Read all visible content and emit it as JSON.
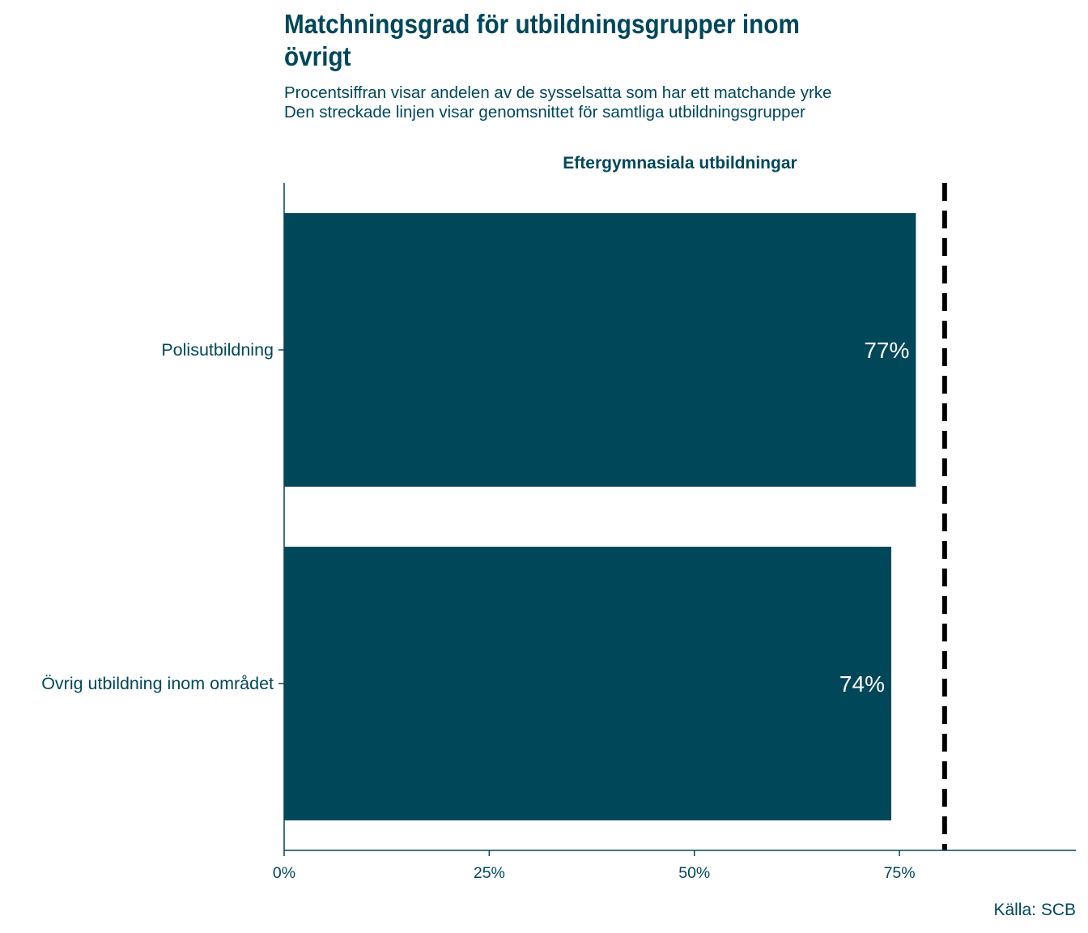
{
  "chart_data": {
    "type": "bar",
    "orientation": "horizontal",
    "title": "Matchningsgrad för utbildningsgrupper inom övrigt",
    "subtitle_lines": [
      "Procentsiffran visar andelen av de sysselsatta som har ett matchande yrke",
      "Den streckade linjen visar genomsnittet för samtliga utbildningsgrupper"
    ],
    "facet": "Eftergymnasiala utbildningar",
    "categories": [
      "Polisutbildning",
      "Övrig utbildning inom området"
    ],
    "values": [
      77,
      74
    ],
    "data_labels": [
      "77%",
      "74%"
    ],
    "reference_line": {
      "style": "dashed",
      "value": 80.5
    },
    "xlim": [
      0,
      96.5
    ],
    "xticks": [
      0,
      25,
      50,
      75
    ],
    "xtick_labels": [
      "0%",
      "25%",
      "50%",
      "75%"
    ],
    "grid": false,
    "legend": "none",
    "caption": "Källa: SCB",
    "colors": {
      "bar": "#00475a",
      "text": "#00475a",
      "reference_line": "#000000",
      "bar_label": "#ffffff"
    }
  }
}
